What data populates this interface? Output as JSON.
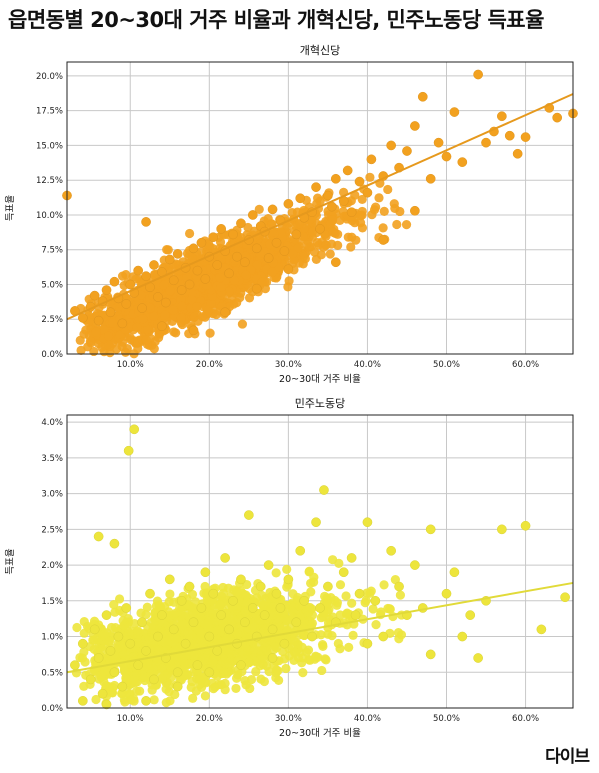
{
  "page_title": "읍면동별 20~30대 거주 비율과 개혁신당, 민주노동당 득표율",
  "logo": {
    "text": "다이브"
  },
  "chart_data": [
    {
      "type": "scatter",
      "title": "개혁신당",
      "xlabel": "20~30대 거주 비율",
      "ylabel": "득표율",
      "xlim": [
        2,
        66
      ],
      "ylim": [
        0,
        21
      ],
      "xticks": [
        10,
        20,
        30,
        40,
        50,
        60
      ],
      "xtick_labels": [
        "10.0%",
        "20.0%",
        "30.0%",
        "40.0%",
        "50.0%",
        "60.0%"
      ],
      "yticks": [
        0,
        2.5,
        5,
        7.5,
        10,
        12.5,
        15,
        17.5,
        20
      ],
      "ytick_labels": [
        "0.0%",
        "2.5%",
        "5.0%",
        "7.5%",
        "10.0%",
        "12.5%",
        "15.0%",
        "17.5%",
        "20.0%"
      ],
      "grid": true,
      "color": "#F2A11F",
      "points": [
        [
          3,
          3.1
        ],
        [
          4,
          2.6
        ],
        [
          5,
          3.4
        ],
        [
          5.5,
          4.2
        ],
        [
          6,
          2.4
        ],
        [
          6.5,
          3.8
        ],
        [
          7,
          4.6
        ],
        [
          7.5,
          3.0
        ],
        [
          8,
          5.2
        ],
        [
          8.5,
          4.0
        ],
        [
          9,
          2.2
        ],
        [
          9.5,
          3.6
        ],
        [
          10,
          5.0
        ],
        [
          10.5,
          4.4
        ],
        [
          11,
          6.0
        ],
        [
          11.5,
          3.3
        ],
        [
          12,
          5.6
        ],
        [
          12.5,
          4.8
        ],
        [
          13,
          6.4
        ],
        [
          13.5,
          4.1
        ],
        [
          14,
          5.9
        ],
        [
          14.5,
          3.7
        ],
        [
          15,
          6.8
        ],
        [
          15.5,
          5.3
        ],
        [
          16,
          7.2
        ],
        [
          16.5,
          4.6
        ],
        [
          17,
          6.2
        ],
        [
          17.5,
          5.0
        ],
        [
          18,
          7.6
        ],
        [
          18.5,
          6.0
        ],
        [
          19,
          8.0
        ],
        [
          19.5,
          5.4
        ],
        [
          20,
          7.0
        ],
        [
          20.5,
          8.4
        ],
        [
          21,
          6.4
        ],
        [
          21.5,
          9.0
        ],
        [
          22,
          7.4
        ],
        [
          22.5,
          5.8
        ],
        [
          23,
          8.6
        ],
        [
          23.5,
          7.0
        ],
        [
          24,
          9.4
        ],
        [
          24.5,
          6.6
        ],
        [
          25,
          8.2
        ],
        [
          25.5,
          10.0
        ],
        [
          26,
          7.6
        ],
        [
          26.5,
          9.2
        ],
        [
          27,
          8.8
        ],
        [
          27.5,
          6.9
        ],
        [
          28,
          10.4
        ],
        [
          28.5,
          8.0
        ],
        [
          29,
          9.6
        ],
        [
          29.5,
          7.4
        ],
        [
          30,
          10.8
        ],
        [
          31,
          8.6
        ],
        [
          31.5,
          11.2
        ],
        [
          32,
          9.8
        ],
        [
          33,
          10.2
        ],
        [
          33.5,
          12.0
        ],
        [
          34,
          9.0
        ],
        [
          35,
          11.4
        ],
        [
          35.5,
          10.6
        ],
        [
          36,
          12.6
        ],
        [
          37,
          11.0
        ],
        [
          37.5,
          13.2
        ],
        [
          38,
          10.2
        ],
        [
          39,
          12.4
        ],
        [
          40,
          11.6
        ],
        [
          40.5,
          14.0
        ],
        [
          42,
          12.8
        ],
        [
          43,
          15.0
        ],
        [
          44,
          13.4
        ],
        [
          45,
          14.6
        ],
        [
          46,
          16.4
        ],
        [
          47,
          18.5
        ],
        [
          48,
          12.6
        ],
        [
          49,
          15.2
        ],
        [
          50,
          14.2
        ],
        [
          51,
          17.4
        ],
        [
          52,
          13.8
        ],
        [
          54,
          20.1
        ],
        [
          55,
          15.2
        ],
        [
          56,
          16.0
        ],
        [
          57,
          17.1
        ],
        [
          58,
          15.7
        ],
        [
          59,
          14.4
        ],
        [
          60,
          15.6
        ],
        [
          63,
          17.7
        ],
        [
          64,
          17.0
        ],
        [
          66,
          17.3
        ],
        [
          2,
          11.4
        ],
        [
          12,
          9.5
        ],
        [
          14,
          2.0
        ],
        [
          18,
          1.7
        ],
        [
          22,
          3.0
        ],
        [
          26,
          4.7
        ],
        [
          30,
          6.1
        ],
        [
          36,
          6.6
        ],
        [
          42,
          8.2
        ],
        [
          46,
          10.3
        ]
      ],
      "trend": [
        [
          2,
          2.5
        ],
        [
          66,
          18.7
        ]
      ]
    },
    {
      "type": "scatter",
      "title": "민주노동당",
      "xlabel": "20~30대 거주 비율",
      "ylabel": "득표율",
      "xlim": [
        2,
        66
      ],
      "ylim": [
        0,
        4.1
      ],
      "xticks": [
        10,
        20,
        30,
        40,
        50,
        60
      ],
      "xtick_labels": [
        "10.0%",
        "20.0%",
        "30.0%",
        "40.0%",
        "50.0%",
        "60.0%"
      ],
      "yticks": [
        0,
        0.5,
        1,
        1.5,
        2,
        2.5,
        3,
        3.5,
        4
      ],
      "ytick_labels": [
        "0.0%",
        "0.5%",
        "1.0%",
        "1.5%",
        "2.0%",
        "2.5%",
        "3.0%",
        "3.5%",
        "4.0%"
      ],
      "grid": true,
      "color": "#EDE53C",
      "points": [
        [
          3,
          0.6
        ],
        [
          4,
          0.9
        ],
        [
          5,
          0.4
        ],
        [
          5.5,
          1.1
        ],
        [
          6,
          0.7
        ],
        [
          6.5,
          0.2
        ],
        [
          7,
          1.3
        ],
        [
          7.5,
          0.8
        ],
        [
          8,
          0.5
        ],
        [
          8.5,
          1.0
        ],
        [
          9,
          0.3
        ],
        [
          9.5,
          1.4
        ],
        [
          10,
          0.9
        ],
        [
          10.5,
          3.9
        ],
        [
          11,
          0.6
        ],
        [
          11.5,
          1.2
        ],
        [
          12,
          0.8
        ],
        [
          12.5,
          1.6
        ],
        [
          13,
          0.4
        ],
        [
          13.5,
          1.0
        ],
        [
          14,
          1.3
        ],
        [
          14.5,
          0.7
        ],
        [
          15,
          1.8
        ],
        [
          15.5,
          1.1
        ],
        [
          16,
          0.5
        ],
        [
          16.5,
          1.5
        ],
        [
          17,
          0.9
        ],
        [
          17.5,
          1.7
        ],
        [
          18,
          1.2
        ],
        [
          18.5,
          0.6
        ],
        [
          19,
          1.4
        ],
        [
          19.5,
          1.9
        ],
        [
          20,
          1.0
        ],
        [
          20.5,
          1.6
        ],
        [
          21,
          0.8
        ],
        [
          21.5,
          1.3
        ],
        [
          22,
          2.1
        ],
        [
          22.5,
          1.1
        ],
        [
          23,
          1.5
        ],
        [
          23.5,
          0.9
        ],
        [
          24,
          1.8
        ],
        [
          24.5,
          1.2
        ],
        [
          25,
          2.7
        ],
        [
          25.5,
          1.4
        ],
        [
          26,
          1.0
        ],
        [
          26.5,
          1.7
        ],
        [
          27,
          1.3
        ],
        [
          27.5,
          2.0
        ],
        [
          28,
          1.1
        ],
        [
          28.5,
          1.6
        ],
        [
          29,
          1.4
        ],
        [
          29.5,
          0.9
        ],
        [
          30,
          1.8
        ],
        [
          31,
          1.2
        ],
        [
          31.5,
          2.2
        ],
        [
          32,
          1.5
        ],
        [
          33,
          1.0
        ],
        [
          33.5,
          2.6
        ],
        [
          34,
          1.4
        ],
        [
          34.5,
          3.05
        ],
        [
          35,
          1.7
        ],
        [
          36,
          1.2
        ],
        [
          37,
          1.9
        ],
        [
          38,
          2.1
        ],
        [
          38.5,
          1.3
        ],
        [
          39,
          1.6
        ],
        [
          40,
          2.6
        ],
        [
          41,
          1.5
        ],
        [
          42,
          1.0
        ],
        [
          43,
          2.2
        ],
        [
          44,
          1.7
        ],
        [
          45,
          1.3
        ],
        [
          46,
          2.0
        ],
        [
          47,
          1.4
        ],
        [
          48,
          2.5
        ],
        [
          50,
          1.6
        ],
        [
          51,
          1.9
        ],
        [
          52,
          1.0
        ],
        [
          53,
          1.3
        ],
        [
          54,
          0.7
        ],
        [
          55,
          1.5
        ],
        [
          57,
          2.5
        ],
        [
          60,
          2.55
        ],
        [
          62,
          1.1
        ],
        [
          65,
          1.55
        ],
        [
          9.8,
          3.6
        ],
        [
          8,
          2.3
        ],
        [
          6,
          2.4
        ],
        [
          4,
          0.1
        ],
        [
          7,
          0.05
        ],
        [
          12,
          0.1
        ],
        [
          16,
          0.3
        ],
        [
          20,
          0.5
        ],
        [
          24,
          0.6
        ],
        [
          28,
          0.7
        ],
        [
          40,
          0.9
        ],
        [
          48,
          0.75
        ]
      ],
      "trend": [
        [
          2,
          0.5
        ],
        [
          66,
          1.75
        ]
      ]
    }
  ]
}
